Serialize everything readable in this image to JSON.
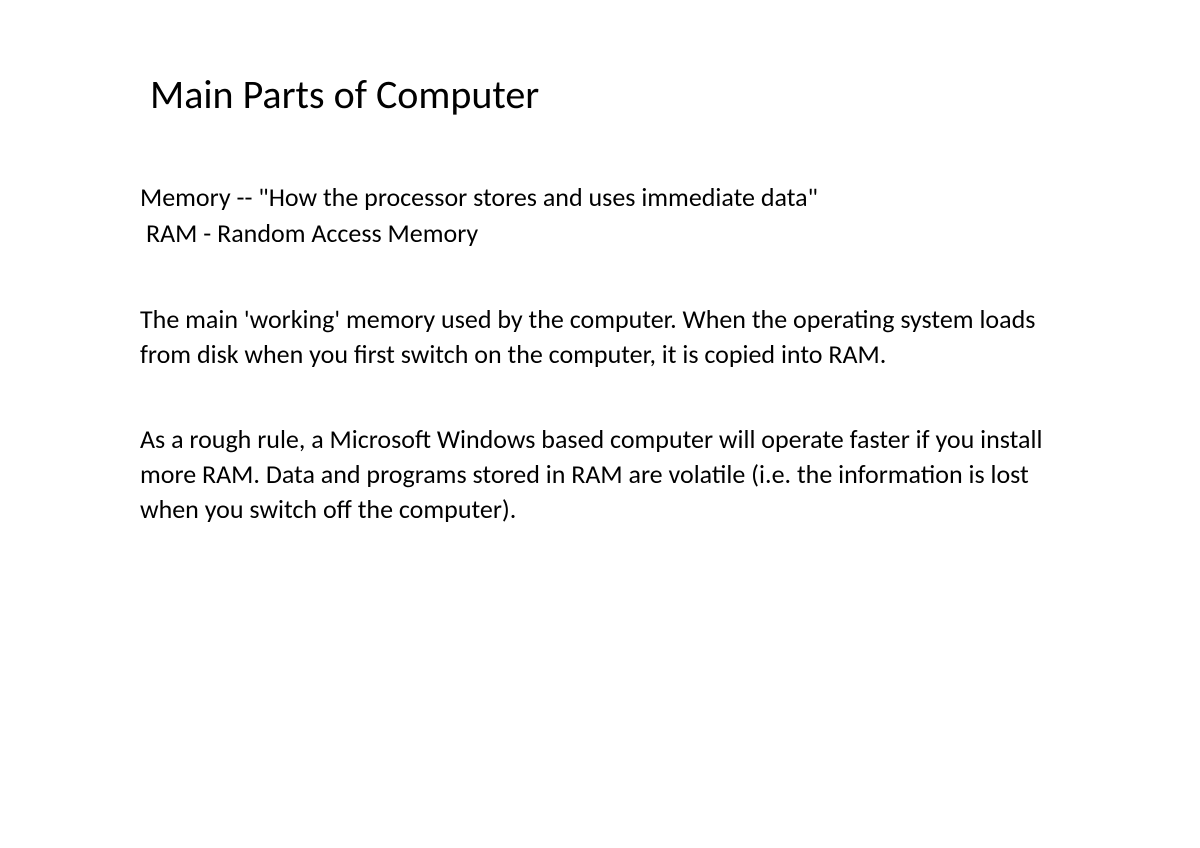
{
  "document": {
    "title": "Main Parts of Computer",
    "subtitle_line1": "Memory -- \"How the processor stores and uses immediate data\"",
    "subtitle_line2": "RAM - Random Access Memory",
    "paragraph1": "The main 'working' memory used by the computer. When the operating system loads from disk when you first switch on the computer, it is copied into RAM.",
    "paragraph2": " As a rough rule, a Microsoft Windows based computer will operate faster if you install more RAM. Data and programs stored in RAM are volatile (i.e. the information is lost when you switch off the computer).",
    "background_color": "#ffffff",
    "text_color": "#000000",
    "title_fontsize": 40,
    "body_fontsize": 26,
    "font_family": "Calibri"
  }
}
